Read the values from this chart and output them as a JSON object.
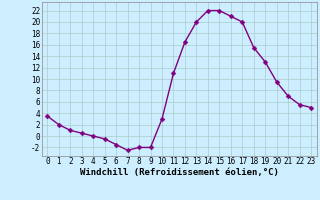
{
  "x": [
    0,
    1,
    2,
    3,
    4,
    5,
    6,
    7,
    8,
    9,
    10,
    11,
    12,
    13,
    14,
    15,
    16,
    17,
    18,
    19,
    20,
    21,
    22,
    23
  ],
  "y": [
    3.5,
    2.0,
    1.0,
    0.5,
    0.0,
    -0.5,
    -1.5,
    -2.5,
    -2.0,
    -2.0,
    3.0,
    11.0,
    16.5,
    20.0,
    22.0,
    22.0,
    21.0,
    20.0,
    15.5,
    13.0,
    9.5,
    7.0,
    5.5,
    5.0
  ],
  "line_color": "#800080",
  "marker_color": "#800080",
  "bg_color": "#cceeff",
  "grid_color": "#aacccc",
  "xlabel": "Windchill (Refroidissement éolien,°C)",
  "xlim": [
    -0.5,
    23.5
  ],
  "ylim": [
    -3.5,
    23.5
  ],
  "xticks": [
    0,
    1,
    2,
    3,
    4,
    5,
    6,
    7,
    8,
    9,
    10,
    11,
    12,
    13,
    14,
    15,
    16,
    17,
    18,
    19,
    20,
    21,
    22,
    23
  ],
  "yticks": [
    -2,
    0,
    2,
    4,
    6,
    8,
    10,
    12,
    14,
    16,
    18,
    20,
    22
  ],
  "xlabel_fontsize": 6.5,
  "tick_fontsize": 5.5,
  "line_width": 1.0,
  "marker_size": 2.5
}
